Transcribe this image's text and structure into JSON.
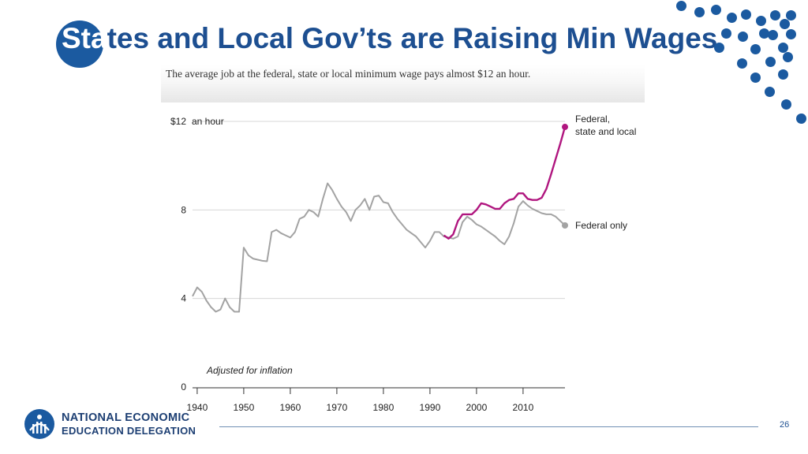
{
  "slide": {
    "title_first": "Sta",
    "title_rest": "tes and Local Gov’ts are Raising Min Wages",
    "page_number": "26",
    "accent_color": "#1b5aa0"
  },
  "logo": {
    "line1": "NATIONAL ECONOMIC",
    "line2": "EDUCATION DELEGATION"
  },
  "chart_data": {
    "type": "line",
    "subtitle": "The average job at the federal, state or local minimum wage pays almost $12 an hour.",
    "ylabel_prefix": "$12",
    "ylabel_suffix": "an hour",
    "y_ticks": [
      "0",
      "4",
      "8"
    ],
    "y_tick_values": [
      0,
      4,
      8
    ],
    "x_ticks": [
      "1940",
      "1950",
      "1960",
      "1970",
      "1980",
      "1990",
      "2000",
      "2010"
    ],
    "x_tick_values": [
      1940,
      1950,
      1960,
      1970,
      1980,
      1990,
      2000,
      2010
    ],
    "xlim": [
      1939,
      2019
    ],
    "ylim": [
      0,
      12
    ],
    "note": "Adjusted for inflation",
    "grid": true,
    "series": [
      {
        "name": "Federal only",
        "label_line1": "Federal only",
        "color": "#a3a3a3",
        "x": [
          1939,
          1940,
          1941,
          1942,
          1943,
          1944,
          1945,
          1946,
          1947,
          1948,
          1949,
          1950,
          1951,
          1952,
          1953,
          1954,
          1955,
          1956,
          1957,
          1958,
          1959,
          1960,
          1961,
          1962,
          1963,
          1964,
          1965,
          1966,
          1967,
          1968,
          1969,
          1970,
          1971,
          1972,
          1973,
          1974,
          1975,
          1976,
          1977,
          1978,
          1979,
          1980,
          1981,
          1982,
          1983,
          1984,
          1985,
          1986,
          1987,
          1988,
          1989,
          1990,
          1991,
          1992,
          1993,
          1994,
          1995,
          1996,
          1997,
          1998,
          1999,
          2000,
          2001,
          2002,
          2003,
          2004,
          2005,
          2006,
          2007,
          2008,
          2009,
          2010,
          2011,
          2012,
          2013,
          2014,
          2015,
          2016,
          2017,
          2018,
          2019
        ],
        "values": [
          4.1,
          4.5,
          4.3,
          3.9,
          3.6,
          3.4,
          3.5,
          4.0,
          3.6,
          3.4,
          3.4,
          6.3,
          5.95,
          5.8,
          5.75,
          5.7,
          5.68,
          7.0,
          7.1,
          6.95,
          6.85,
          6.75,
          7.0,
          7.6,
          7.7,
          8.0,
          7.9,
          7.7,
          8.5,
          9.2,
          8.9,
          8.5,
          8.15,
          7.9,
          7.5,
          8.0,
          8.2,
          8.5,
          8.0,
          8.6,
          8.65,
          8.35,
          8.3,
          7.9,
          7.6,
          7.35,
          7.1,
          6.95,
          6.8,
          6.55,
          6.3,
          6.6,
          7.0,
          7.0,
          6.8,
          6.75,
          6.7,
          6.8,
          7.45,
          7.7,
          7.55,
          7.35,
          7.25,
          7.1,
          6.95,
          6.8,
          6.6,
          6.45,
          6.8,
          7.4,
          8.15,
          8.4,
          8.2,
          8.05,
          7.95,
          7.85,
          7.8,
          7.8,
          7.7,
          7.5,
          7.3
        ]
      },
      {
        "name": "Federal, state and local",
        "label_line1": "Federal,",
        "label_line2": "state and local",
        "color": "#b0167f",
        "x": [
          1993,
          1994,
          1995,
          1996,
          1997,
          1998,
          1999,
          2000,
          2001,
          2002,
          2003,
          2004,
          2005,
          2006,
          2007,
          2008,
          2009,
          2010,
          2011,
          2012,
          2013,
          2014,
          2015,
          2016,
          2017,
          2018,
          2019
        ],
        "values": [
          6.85,
          6.7,
          6.9,
          7.5,
          7.8,
          7.8,
          7.8,
          8.0,
          8.3,
          8.25,
          8.15,
          8.05,
          8.05,
          8.3,
          8.45,
          8.5,
          8.75,
          8.75,
          8.5,
          8.45,
          8.45,
          8.55,
          8.95,
          9.6,
          10.3,
          11.0,
          11.75
        ]
      }
    ]
  }
}
